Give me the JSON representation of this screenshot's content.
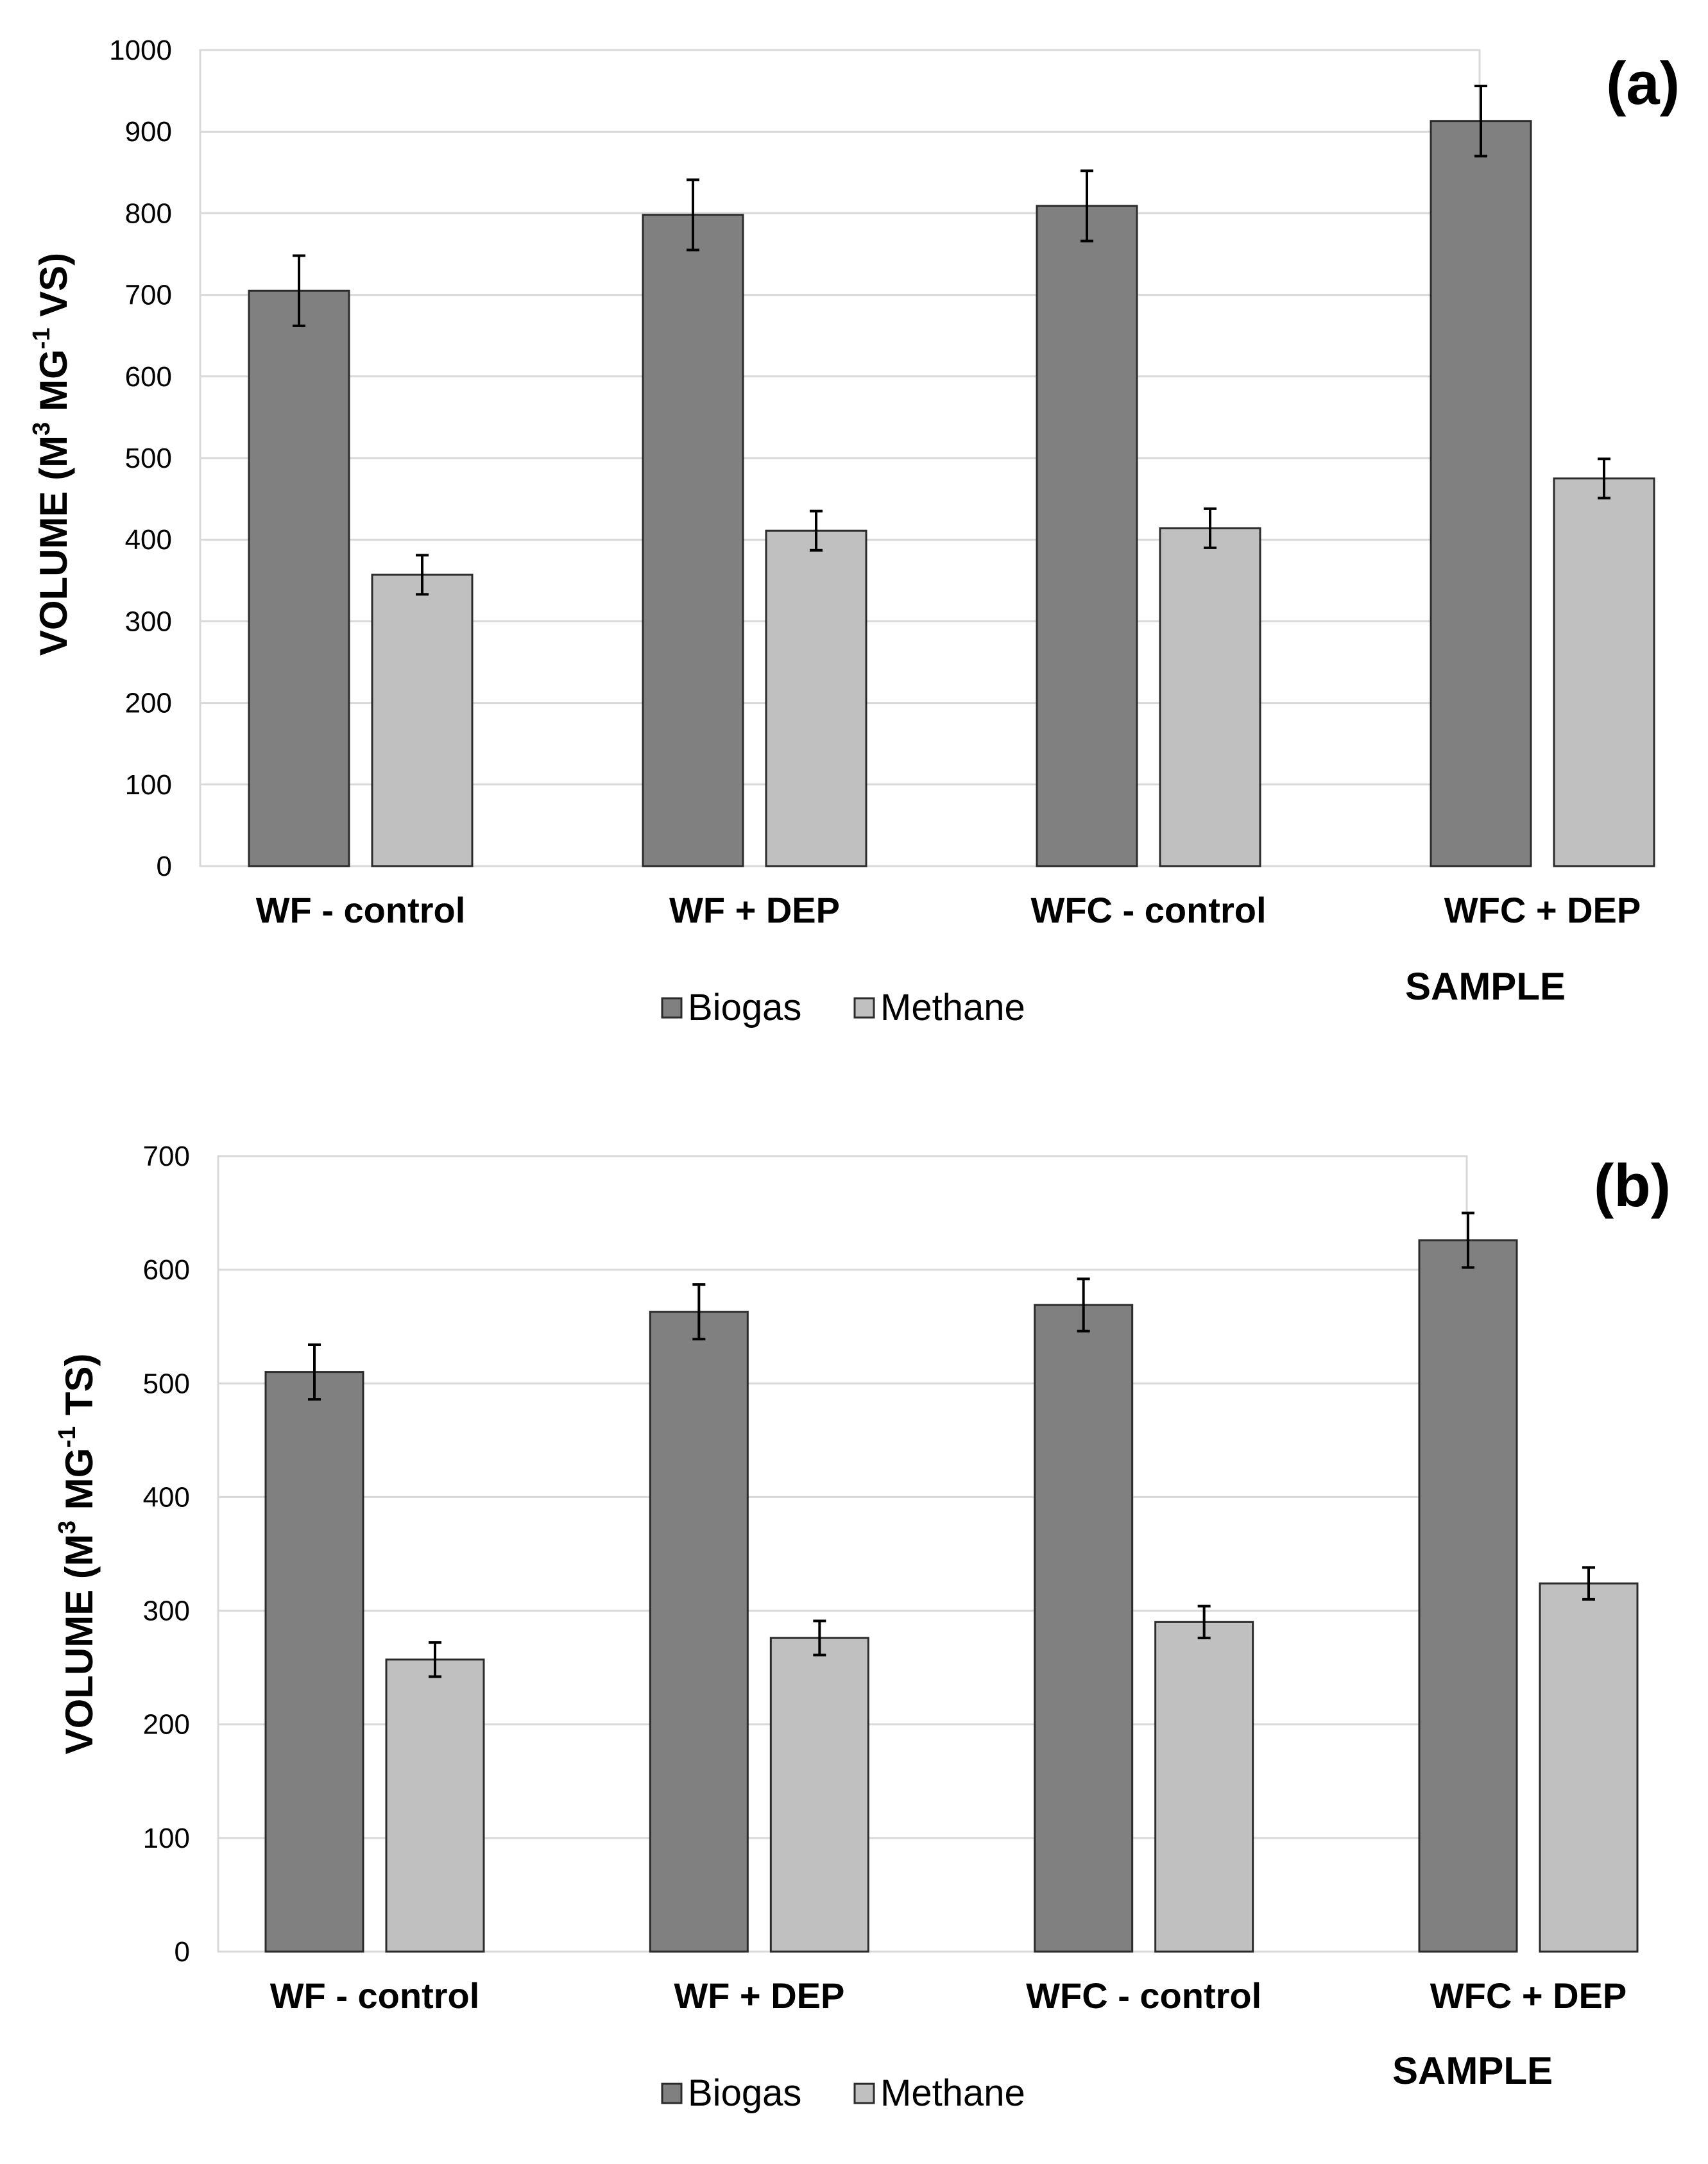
{
  "chart_data": [
    {
      "type": "bar",
      "panel_label": "(a)",
      "categories": [
        "WF - control",
        "WF + DEP",
        "WFC - control",
        "WFC + DEP"
      ],
      "series": [
        {
          "name": "Biogas",
          "color": "#808080",
          "values": [
            705,
            798,
            809,
            913
          ],
          "errors": [
            43,
            43,
            43,
            43
          ]
        },
        {
          "name": "Methane",
          "color": "#c0c0c0",
          "values": [
            357,
            411,
            414,
            475
          ],
          "errors": [
            24,
            24,
            24,
            24
          ]
        }
      ],
      "ylabel_main": "VOLUME (M",
      "ylabel_sup1": "3",
      "ylabel_mid": " MG",
      "ylabel_sup2": "-1",
      "ylabel_end": " VS)",
      "xlabel": "SAMPLE",
      "ylim": [
        0,
        1000
      ],
      "yticks": [
        0,
        100,
        200,
        300,
        400,
        500,
        600,
        700,
        800,
        900,
        1000
      ],
      "grid": true,
      "legend": "bottom-center"
    },
    {
      "type": "bar",
      "panel_label": "(b)",
      "categories": [
        "WF - control",
        "WF + DEP",
        "WFC - control",
        "WFC + DEP"
      ],
      "series": [
        {
          "name": "Biogas",
          "color": "#808080",
          "values": [
            510,
            563,
            569,
            626
          ],
          "errors": [
            24,
            24,
            23,
            24
          ]
        },
        {
          "name": "Methane",
          "color": "#c0c0c0",
          "values": [
            257,
            276,
            290,
            324
          ],
          "errors": [
            15,
            15,
            14,
            14
          ]
        }
      ],
      "ylabel_main": "VOLUME (M",
      "ylabel_sup1": "3",
      "ylabel_mid": " MG",
      "ylabel_sup2": "-1",
      "ylabel_end": " TS)",
      "xlabel": "SAMPLE",
      "ylim": [
        0,
        700
      ],
      "yticks": [
        0,
        100,
        200,
        300,
        400,
        500,
        600,
        700
      ],
      "grid": true,
      "legend": "bottom-center"
    }
  ]
}
